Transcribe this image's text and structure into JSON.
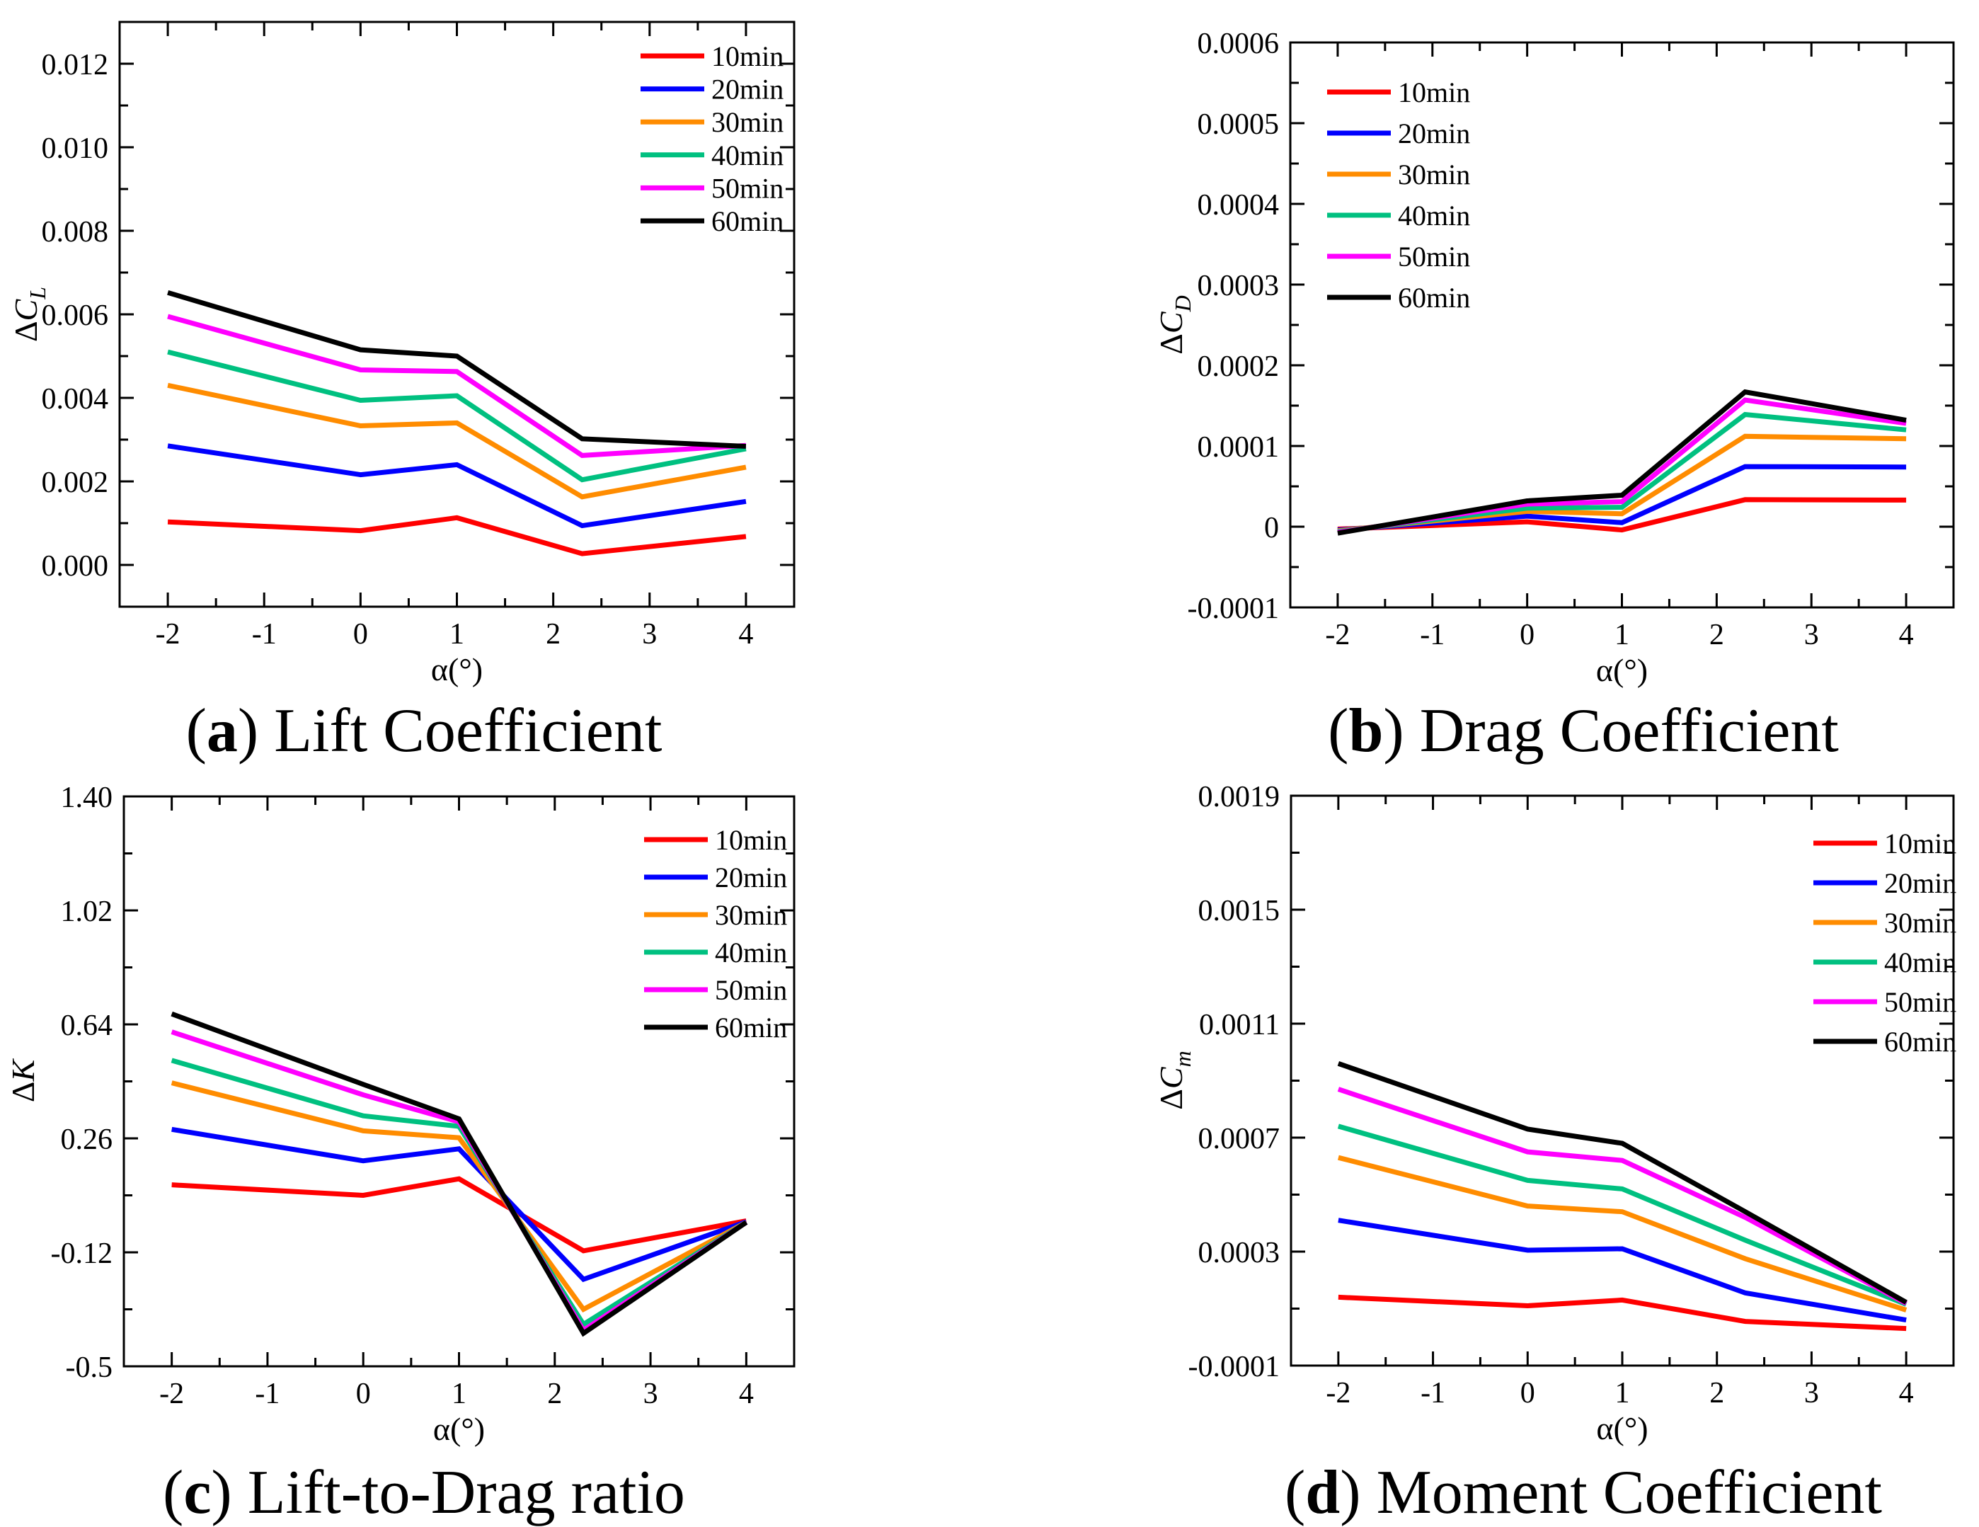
{
  "figure": {
    "captions": [
      {
        "open": "(",
        "letter": "a",
        "close": ")",
        "text": " Lift Coefficient"
      },
      {
        "open": "(",
        "letter": "b",
        "close": ")",
        "text": " Drag Coefficient"
      },
      {
        "open": "(",
        "letter": "c",
        "close": ")",
        "text": " Lift-to-Drag ratio"
      },
      {
        "open": "(",
        "letter": "d",
        "close": ")",
        "text": " Moment Coefficient"
      }
    ]
  },
  "legend": {
    "entries": [
      {
        "label": "10min",
        "color": "#FF0000"
      },
      {
        "label": "20min",
        "color": "#0000FE"
      },
      {
        "label": "30min",
        "color": "#FF8C00"
      },
      {
        "label": "40min",
        "color": "#00C080"
      },
      {
        "label": "50min",
        "color": "#FF00FF"
      },
      {
        "label": "60min",
        "color": "#000000"
      }
    ]
  },
  "chart_data": [
    {
      "type": "line",
      "id": "a",
      "caption": "(a) Lift Coefficient",
      "xlabel": "α(°)",
      "ylabel": {
        "delta": "Δ",
        "letter": "C",
        "sub": "L"
      },
      "x": [
        -2,
        0,
        1,
        2.3,
        4
      ],
      "xlim": [
        -2.5,
        4.5
      ],
      "ylim": [
        -0.001,
        0.013
      ],
      "grid": false,
      "legend_position": "top-right",
      "xticks": [
        {
          "v": -2,
          "label": "-2"
        },
        {
          "v": -1,
          "label": "-1"
        },
        {
          "v": 0,
          "label": "0"
        },
        {
          "v": 1,
          "label": "1"
        },
        {
          "v": 2,
          "label": "2"
        },
        {
          "v": 3,
          "label": "3"
        },
        {
          "v": 4,
          "label": "4"
        }
      ],
      "xminor": [
        -1.5,
        -0.5,
        0.5,
        1.5,
        2.5,
        3.5
      ],
      "yticks": [
        {
          "v": 0,
          "label": "0.000"
        },
        {
          "v": 0.002,
          "label": "0.002"
        },
        {
          "v": 0.004,
          "label": "0.004"
        },
        {
          "v": 0.006,
          "label": "0.006"
        },
        {
          "v": 0.008,
          "label": "0.008"
        },
        {
          "v": 0.01,
          "label": "0.010"
        },
        {
          "v": 0.012,
          "label": "0.012"
        }
      ],
      "yminor": [
        0.001,
        0.003,
        0.005,
        0.007,
        0.009,
        0.011
      ],
      "series": [
        {
          "name": "10min",
          "color": "#FF0000",
          "values": [
            0.00103,
            0.00082,
            0.00113,
            0.00027,
            0.00068
          ]
        },
        {
          "name": "20min",
          "color": "#0000FE",
          "values": [
            0.00285,
            0.00216,
            0.0024,
            0.00094,
            0.00152
          ]
        },
        {
          "name": "30min",
          "color": "#FF8C00",
          "values": [
            0.0043,
            0.00333,
            0.0034,
            0.00163,
            0.00234
          ]
        },
        {
          "name": "40min",
          "color": "#00C080",
          "values": [
            0.0051,
            0.00394,
            0.00405,
            0.00204,
            0.00278
          ]
        },
        {
          "name": "50min",
          "color": "#FF00FF",
          "values": [
            0.00595,
            0.00467,
            0.00463,
            0.00262,
            0.00286
          ]
        },
        {
          "name": "60min",
          "color": "#000000",
          "values": [
            0.00652,
            0.00515,
            0.005,
            0.00302,
            0.00284
          ]
        }
      ]
    },
    {
      "type": "line",
      "id": "b",
      "caption": "(b) Drag Coefficient",
      "xlabel": "α(°)",
      "ylabel": {
        "delta": "Δ",
        "letter": "C",
        "sub": "D"
      },
      "x": [
        -2,
        0,
        1,
        2.3,
        4
      ],
      "xlim": [
        -2.5,
        4.5
      ],
      "ylim": [
        -0.0001,
        0.0006
      ],
      "grid": false,
      "legend_position": "top-left",
      "xticks": [
        {
          "v": -2,
          "label": "-2"
        },
        {
          "v": -1,
          "label": "-1"
        },
        {
          "v": 0,
          "label": "0"
        },
        {
          "v": 1,
          "label": "1"
        },
        {
          "v": 2,
          "label": "2"
        },
        {
          "v": 3,
          "label": "3"
        },
        {
          "v": 4,
          "label": "4"
        }
      ],
      "xminor": [
        -1.5,
        -0.5,
        0.5,
        1.5,
        2.5,
        3.5
      ],
      "yticks": [
        {
          "v": -0.0001,
          "label": "-0.0001"
        },
        {
          "v": 0,
          "label": "0"
        },
        {
          "v": 0.0001,
          "label": "0.0001"
        },
        {
          "v": 0.0002,
          "label": "0.0002"
        },
        {
          "v": 0.0003,
          "label": "0.0003"
        },
        {
          "v": 0.0004,
          "label": "0.0004"
        },
        {
          "v": 0.0005,
          "label": "0.0005"
        },
        {
          "v": 0.0006,
          "label": "0.0006"
        }
      ],
      "yminor": [
        -5e-05,
        5e-05,
        0.00015,
        0.00025,
        0.00035,
        0.00045,
        0.00055
      ],
      "series": [
        {
          "name": "10min",
          "color": "#FF0000",
          "values": [
            -3e-06,
            6e-06,
            -4e-06,
            3.35e-05,
            3.3e-05
          ]
        },
        {
          "name": "20min",
          "color": "#0000FE",
          "values": [
            -4e-06,
            1.3e-05,
            5e-06,
            7.45e-05,
            7.39e-05
          ]
        },
        {
          "name": "30min",
          "color": "#FF8C00",
          "values": [
            -5e-06,
            1.9e-05,
            1.6e-05,
            0.000112,
            0.000109
          ]
        },
        {
          "name": "40min",
          "color": "#00C080",
          "values": [
            -6e-06,
            2.3e-05,
            2.4e-05,
            0.000139,
            0.00012
          ]
        },
        {
          "name": "50min",
          "color": "#FF00FF",
          "values": [
            -7e-06,
            2.8e-05,
            3.1e-05,
            0.000157,
            0.000128
          ]
        },
        {
          "name": "60min",
          "color": "#000000",
          "values": [
            -8e-06,
            3.2e-05,
            3.9e-05,
            0.000167,
            0.000132
          ]
        }
      ]
    },
    {
      "type": "line",
      "id": "c",
      "caption": "(c) Lift-to-Drag ratio",
      "xlabel": "α(°)",
      "ylabel": {
        "delta": "Δ",
        "letter": "K",
        "sub": ""
      },
      "x": [
        -2,
        0,
        1,
        2.3,
        4
      ],
      "xlim": [
        -2.5,
        4.5
      ],
      "ylim": [
        -0.5,
        1.4
      ],
      "grid": false,
      "legend_position": "top-right",
      "xticks": [
        {
          "v": -2,
          "label": "-2"
        },
        {
          "v": -1,
          "label": "-1"
        },
        {
          "v": 0,
          "label": "0"
        },
        {
          "v": 1,
          "label": "1"
        },
        {
          "v": 2,
          "label": "2"
        },
        {
          "v": 3,
          "label": "3"
        },
        {
          "v": 4,
          "label": "4"
        }
      ],
      "xminor": [
        -1.5,
        -0.5,
        0.5,
        1.5,
        2.5,
        3.5
      ],
      "yticks": [
        {
          "v": -0.5,
          "label": "-0.5"
        },
        {
          "v": -0.12,
          "label": "-0.12"
        },
        {
          "v": 0.26,
          "label": "0.26"
        },
        {
          "v": 0.64,
          "label": "0.64"
        },
        {
          "v": 1.02,
          "label": "1.02"
        },
        {
          "v": 1.4,
          "label": "1.40"
        }
      ],
      "yminor": [
        -0.31,
        0.07,
        0.45,
        0.83,
        1.21
      ],
      "series": [
        {
          "name": "10min",
          "color": "#FF0000",
          "values": [
            0.105,
            0.07,
            0.125,
            -0.115,
            -0.015
          ]
        },
        {
          "name": "20min",
          "color": "#0000FE",
          "values": [
            0.29,
            0.185,
            0.225,
            -0.21,
            -0.018
          ]
        },
        {
          "name": "30min",
          "color": "#FF8C00",
          "values": [
            0.445,
            0.285,
            0.262,
            -0.31,
            -0.02
          ]
        },
        {
          "name": "40min",
          "color": "#00C080",
          "values": [
            0.52,
            0.335,
            0.3,
            -0.36,
            -0.02
          ]
        },
        {
          "name": "50min",
          "color": "#FF00FF",
          "values": [
            0.615,
            0.405,
            0.315,
            -0.38,
            -0.02
          ]
        },
        {
          "name": "60min",
          "color": "#000000",
          "values": [
            0.675,
            0.44,
            0.325,
            -0.39,
            -0.02
          ]
        }
      ]
    },
    {
      "type": "line",
      "id": "d",
      "caption": "(d) Moment Coefficient",
      "xlabel": "α(°)",
      "ylabel": {
        "delta": "Δ",
        "letter": "C",
        "sub": "m"
      },
      "x": [
        -2,
        0,
        1,
        2.3,
        4
      ],
      "xlim": [
        -2.5,
        4.5
      ],
      "ylim": [
        -0.0001,
        0.0019
      ],
      "grid": false,
      "legend_position": "top-right",
      "xticks": [
        {
          "v": -2,
          "label": "-2"
        },
        {
          "v": -1,
          "label": "-1"
        },
        {
          "v": 0,
          "label": "0"
        },
        {
          "v": 1,
          "label": "1"
        },
        {
          "v": 2,
          "label": "2"
        },
        {
          "v": 3,
          "label": "3"
        },
        {
          "v": 4,
          "label": "4"
        }
      ],
      "xminor": [
        -1.5,
        -0.5,
        0.5,
        1.5,
        2.5,
        3.5
      ],
      "yticks": [
        {
          "v": -0.0001,
          "label": "-0.0001"
        },
        {
          "v": 0.0003,
          "label": "0.0003"
        },
        {
          "v": 0.0007,
          "label": "0.0007"
        },
        {
          "v": 0.0011,
          "label": "0.0011"
        },
        {
          "v": 0.0015,
          "label": "0.0015"
        },
        {
          "v": 0.0019,
          "label": "0.0019"
        }
      ],
      "yminor": [
        0.0001,
        0.0005,
        0.0009,
        0.0013,
        0.0017
      ],
      "series": [
        {
          "name": "10min",
          "color": "#FF0000",
          "values": [
            0.00014,
            0.00011,
            0.00013,
            5.5e-05,
            3e-05
          ]
        },
        {
          "name": "20min",
          "color": "#0000FE",
          "values": [
            0.00041,
            0.000305,
            0.00031,
            0.000155,
            6e-05
          ]
        },
        {
          "name": "30min",
          "color": "#FF8C00",
          "values": [
            0.00063,
            0.00046,
            0.00044,
            0.000275,
            9.5e-05
          ]
        },
        {
          "name": "40min",
          "color": "#00C080",
          "values": [
            0.00074,
            0.00055,
            0.00052,
            0.00034,
            0.000115
          ]
        },
        {
          "name": "50min",
          "color": "#FF00FF",
          "values": [
            0.00087,
            0.00065,
            0.00062,
            0.00042,
            0.000118
          ]
        },
        {
          "name": "60min",
          "color": "#000000",
          "values": [
            0.00096,
            0.00073,
            0.00068,
            0.00044,
            0.000122
          ]
        }
      ]
    }
  ]
}
